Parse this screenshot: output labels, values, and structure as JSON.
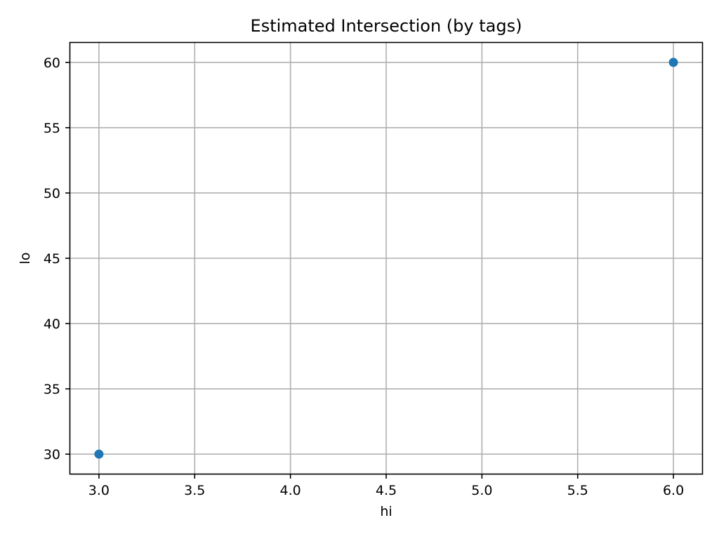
{
  "chart_data": {
    "type": "scatter",
    "title": "Estimated Intersection (by tags)",
    "xlabel": "hi",
    "ylabel": "lo",
    "xlim": [
      2.85,
      6.15
    ],
    "ylim": [
      28.5,
      61.5
    ],
    "xticks": [
      3.0,
      3.5,
      4.0,
      4.5,
      5.0,
      5.5,
      6.0
    ],
    "xtick_labels": [
      "3.0",
      "3.5",
      "4.0",
      "4.5",
      "5.0",
      "5.5",
      "6.0"
    ],
    "yticks": [
      30,
      35,
      40,
      45,
      50,
      55,
      60
    ],
    "ytick_labels": [
      "30",
      "35",
      "40",
      "45",
      "50",
      "55",
      "60"
    ],
    "grid": true,
    "series": [
      {
        "color": "#1f77b4",
        "points": [
          {
            "x": 3,
            "y": 30
          },
          {
            "x": 6,
            "y": 60
          }
        ]
      }
    ]
  }
}
